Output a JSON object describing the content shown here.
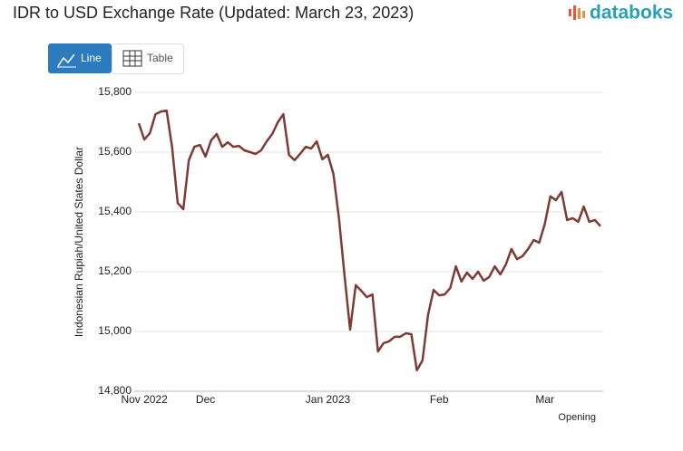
{
  "brand": "databoks",
  "toolbar": {
    "buttons": [
      "Line",
      "Table"
    ]
  },
  "chart_data": {
    "type": "line",
    "title": "IDR to USD Exchange Rate (Updated: March 23, 2023)",
    "y_label": "Indonesian Rupiah/United States Dollar",
    "categories": [
      null,
      "Nov 2022",
      null,
      null,
      null,
      null,
      null,
      null,
      null,
      null,
      null,
      null,
      "Dec",
      null,
      null,
      null,
      null,
      null,
      null,
      null,
      null,
      null,
      null,
      null,
      null,
      null,
      null,
      null,
      null,
      null,
      null,
      null,
      null,
      null,
      "Jan 2023",
      null,
      null,
      null,
      null,
      null,
      null,
      null,
      null,
      null,
      null,
      null,
      null,
      null,
      null,
      null,
      null,
      null,
      null,
      null,
      "Feb",
      null,
      null,
      null,
      null,
      null,
      null,
      null,
      null,
      null,
      null,
      null,
      null,
      null,
      null,
      null,
      null,
      null,
      null,
      "Mar",
      null,
      null,
      null,
      null,
      null,
      null,
      null,
      null,
      null,
      null
    ],
    "series": [
      {
        "name": "Opening",
        "color": "#7e3b34",
        "values": [
          15697,
          15642,
          15664,
          15727,
          15736,
          15739,
          15615,
          15430,
          15409,
          15573,
          15618,
          15624,
          15585,
          15639,
          15661,
          15618,
          15633,
          15618,
          15621,
          15606,
          15600,
          15594,
          15606,
          15636,
          15661,
          15700,
          15727,
          15591,
          15573,
          15594,
          15618,
          15612,
          15636,
          15576,
          15591,
          15527,
          15376,
          15185,
          15006,
          15155,
          15136,
          15115,
          15124,
          14933,
          14961,
          14967,
          14982,
          14982,
          14994,
          14991,
          14870,
          14903,
          15055,
          15139,
          15121,
          15124,
          15145,
          15218,
          15167,
          15197,
          15176,
          15200,
          15170,
          15182,
          15218,
          15191,
          15224,
          15276,
          15242,
          15252,
          15276,
          15306,
          15297,
          15361,
          15452,
          15439,
          15467,
          15373,
          15379,
          15367,
          15418,
          15367,
          15373,
          15352
        ]
      }
    ],
    "ylim": [
      14800,
      15800
    ],
    "yticks": [
      {
        "value": 14800,
        "label": "14,800"
      },
      {
        "value": 15000,
        "label": "15,000"
      },
      {
        "value": 15200,
        "label": "15,200"
      },
      {
        "value": 15400,
        "label": "15,400"
      },
      {
        "value": 15600,
        "label": "15,600"
      },
      {
        "value": 15800,
        "label": "15,800"
      }
    ],
    "grid": true,
    "legend": "bottom-right"
  }
}
